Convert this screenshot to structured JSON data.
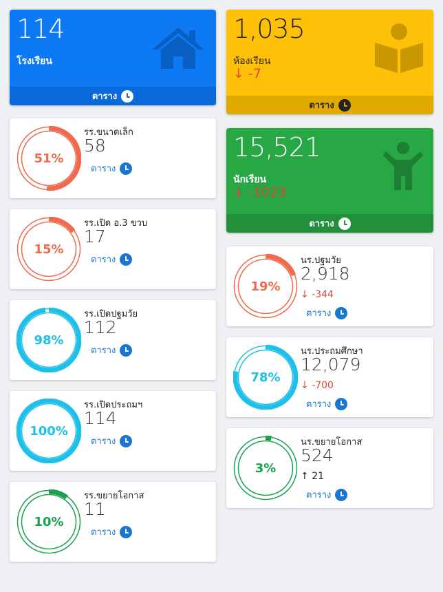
{
  "left_column": {
    "schools_stat": {
      "value": "114",
      "label": "โรงเรียน",
      "footer_link": "ตาราง",
      "color": "#0d79f2",
      "icon": "house-icon"
    },
    "cards": [
      {
        "title": "รร.ขนาดเล็ก",
        "value": "58",
        "percent_label": "51%",
        "percent": 51,
        "color": "#f06a4e",
        "link": "ตาราง"
      },
      {
        "title": "รร.เปิด อ.3 ขวบ",
        "value": "17",
        "percent_label": "15%",
        "percent": 15,
        "color": "#f06a4e",
        "link": "ตาราง"
      },
      {
        "title": "รร.เปิดปฐมวัย",
        "value": "112",
        "percent_label": "98%",
        "percent": 98,
        "color": "#1ec0ea",
        "link": "ตาราง"
      },
      {
        "title": "รร.เปิดประถมฯ",
        "value": "114",
        "percent_label": "100%",
        "percent": 100,
        "color": "#1ec0ea",
        "link": "ตาราง"
      },
      {
        "title": "รร.ขยายโอกาส",
        "value": "11",
        "percent_label": "10%",
        "percent": 10,
        "color": "#1aa050",
        "link": "ตาราง"
      }
    ]
  },
  "right_column": {
    "classrooms_stat": {
      "value": "1,035",
      "label": "ห้องเรียน",
      "delta": "-7",
      "footer_link": "ตาราง",
      "color": "#ffc107",
      "icon": "book-reader-icon"
    },
    "students_stat": {
      "value": "15,521",
      "label": "นักเรียน",
      "delta": "-1023",
      "footer_link": "ตาราง",
      "color": "#28a745",
      "icon": "child-icon"
    },
    "cards": [
      {
        "title": "นร.ปฐมวัย",
        "value": "2,918",
        "delta": "-344",
        "direction": "down",
        "percent_label": "19%",
        "percent": 19,
        "color": "#f06a4e",
        "link": "ตาราง"
      },
      {
        "title": "นร.ประถมศึกษา",
        "value": "12,079",
        "delta": "-700",
        "direction": "down",
        "percent_label": "78%",
        "percent": 78,
        "color": "#1ec0ea",
        "link": "ตาราง"
      },
      {
        "title": "นร.ขยายโอกาส",
        "value": "524",
        "delta": "21",
        "direction": "up",
        "percent_label": "3%",
        "percent": 3,
        "color": "#1aa050",
        "link": "ตาราง"
      }
    ]
  }
}
